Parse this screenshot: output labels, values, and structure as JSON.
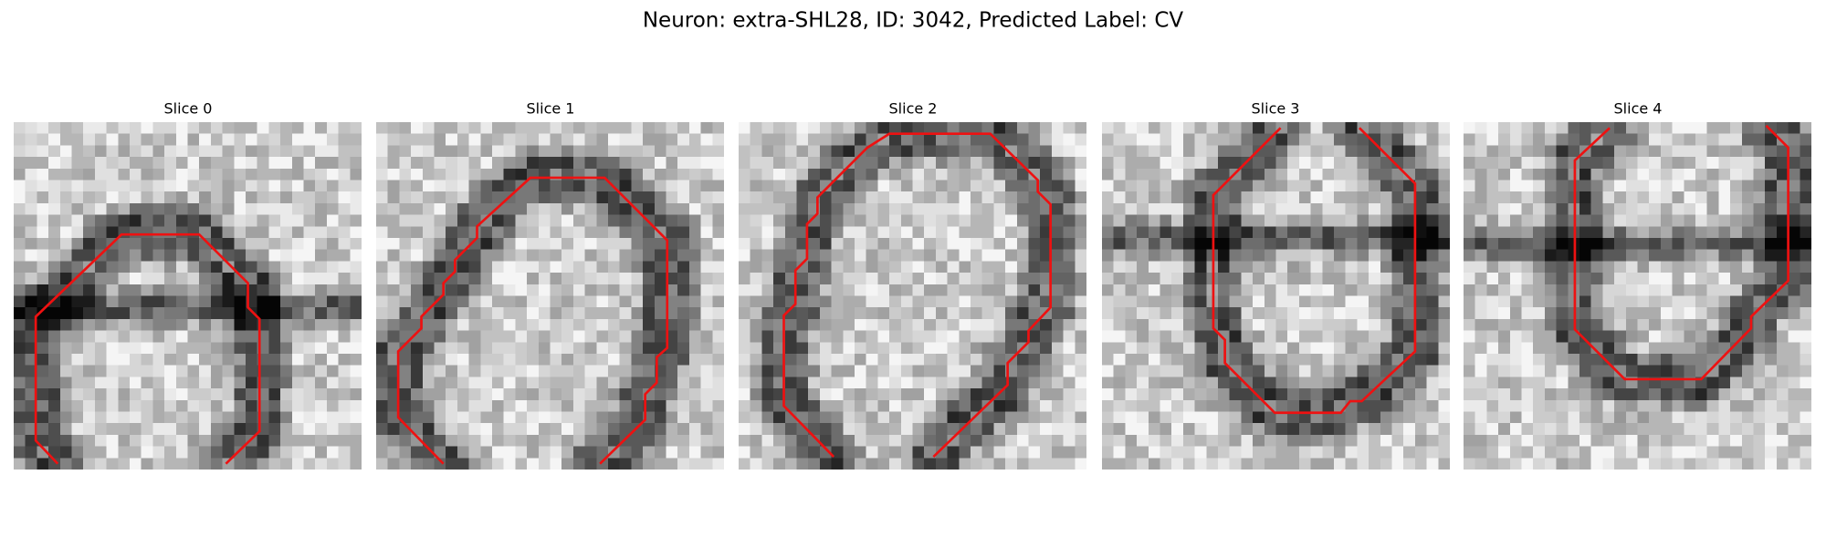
{
  "title": "Neuron: extra-SHL28, ID: 3042, Predicted Label: CV",
  "slices": [
    "Slice 0",
    "Slice 1",
    "Slice 2",
    "Slice 3",
    "Slice 4"
  ]
}
